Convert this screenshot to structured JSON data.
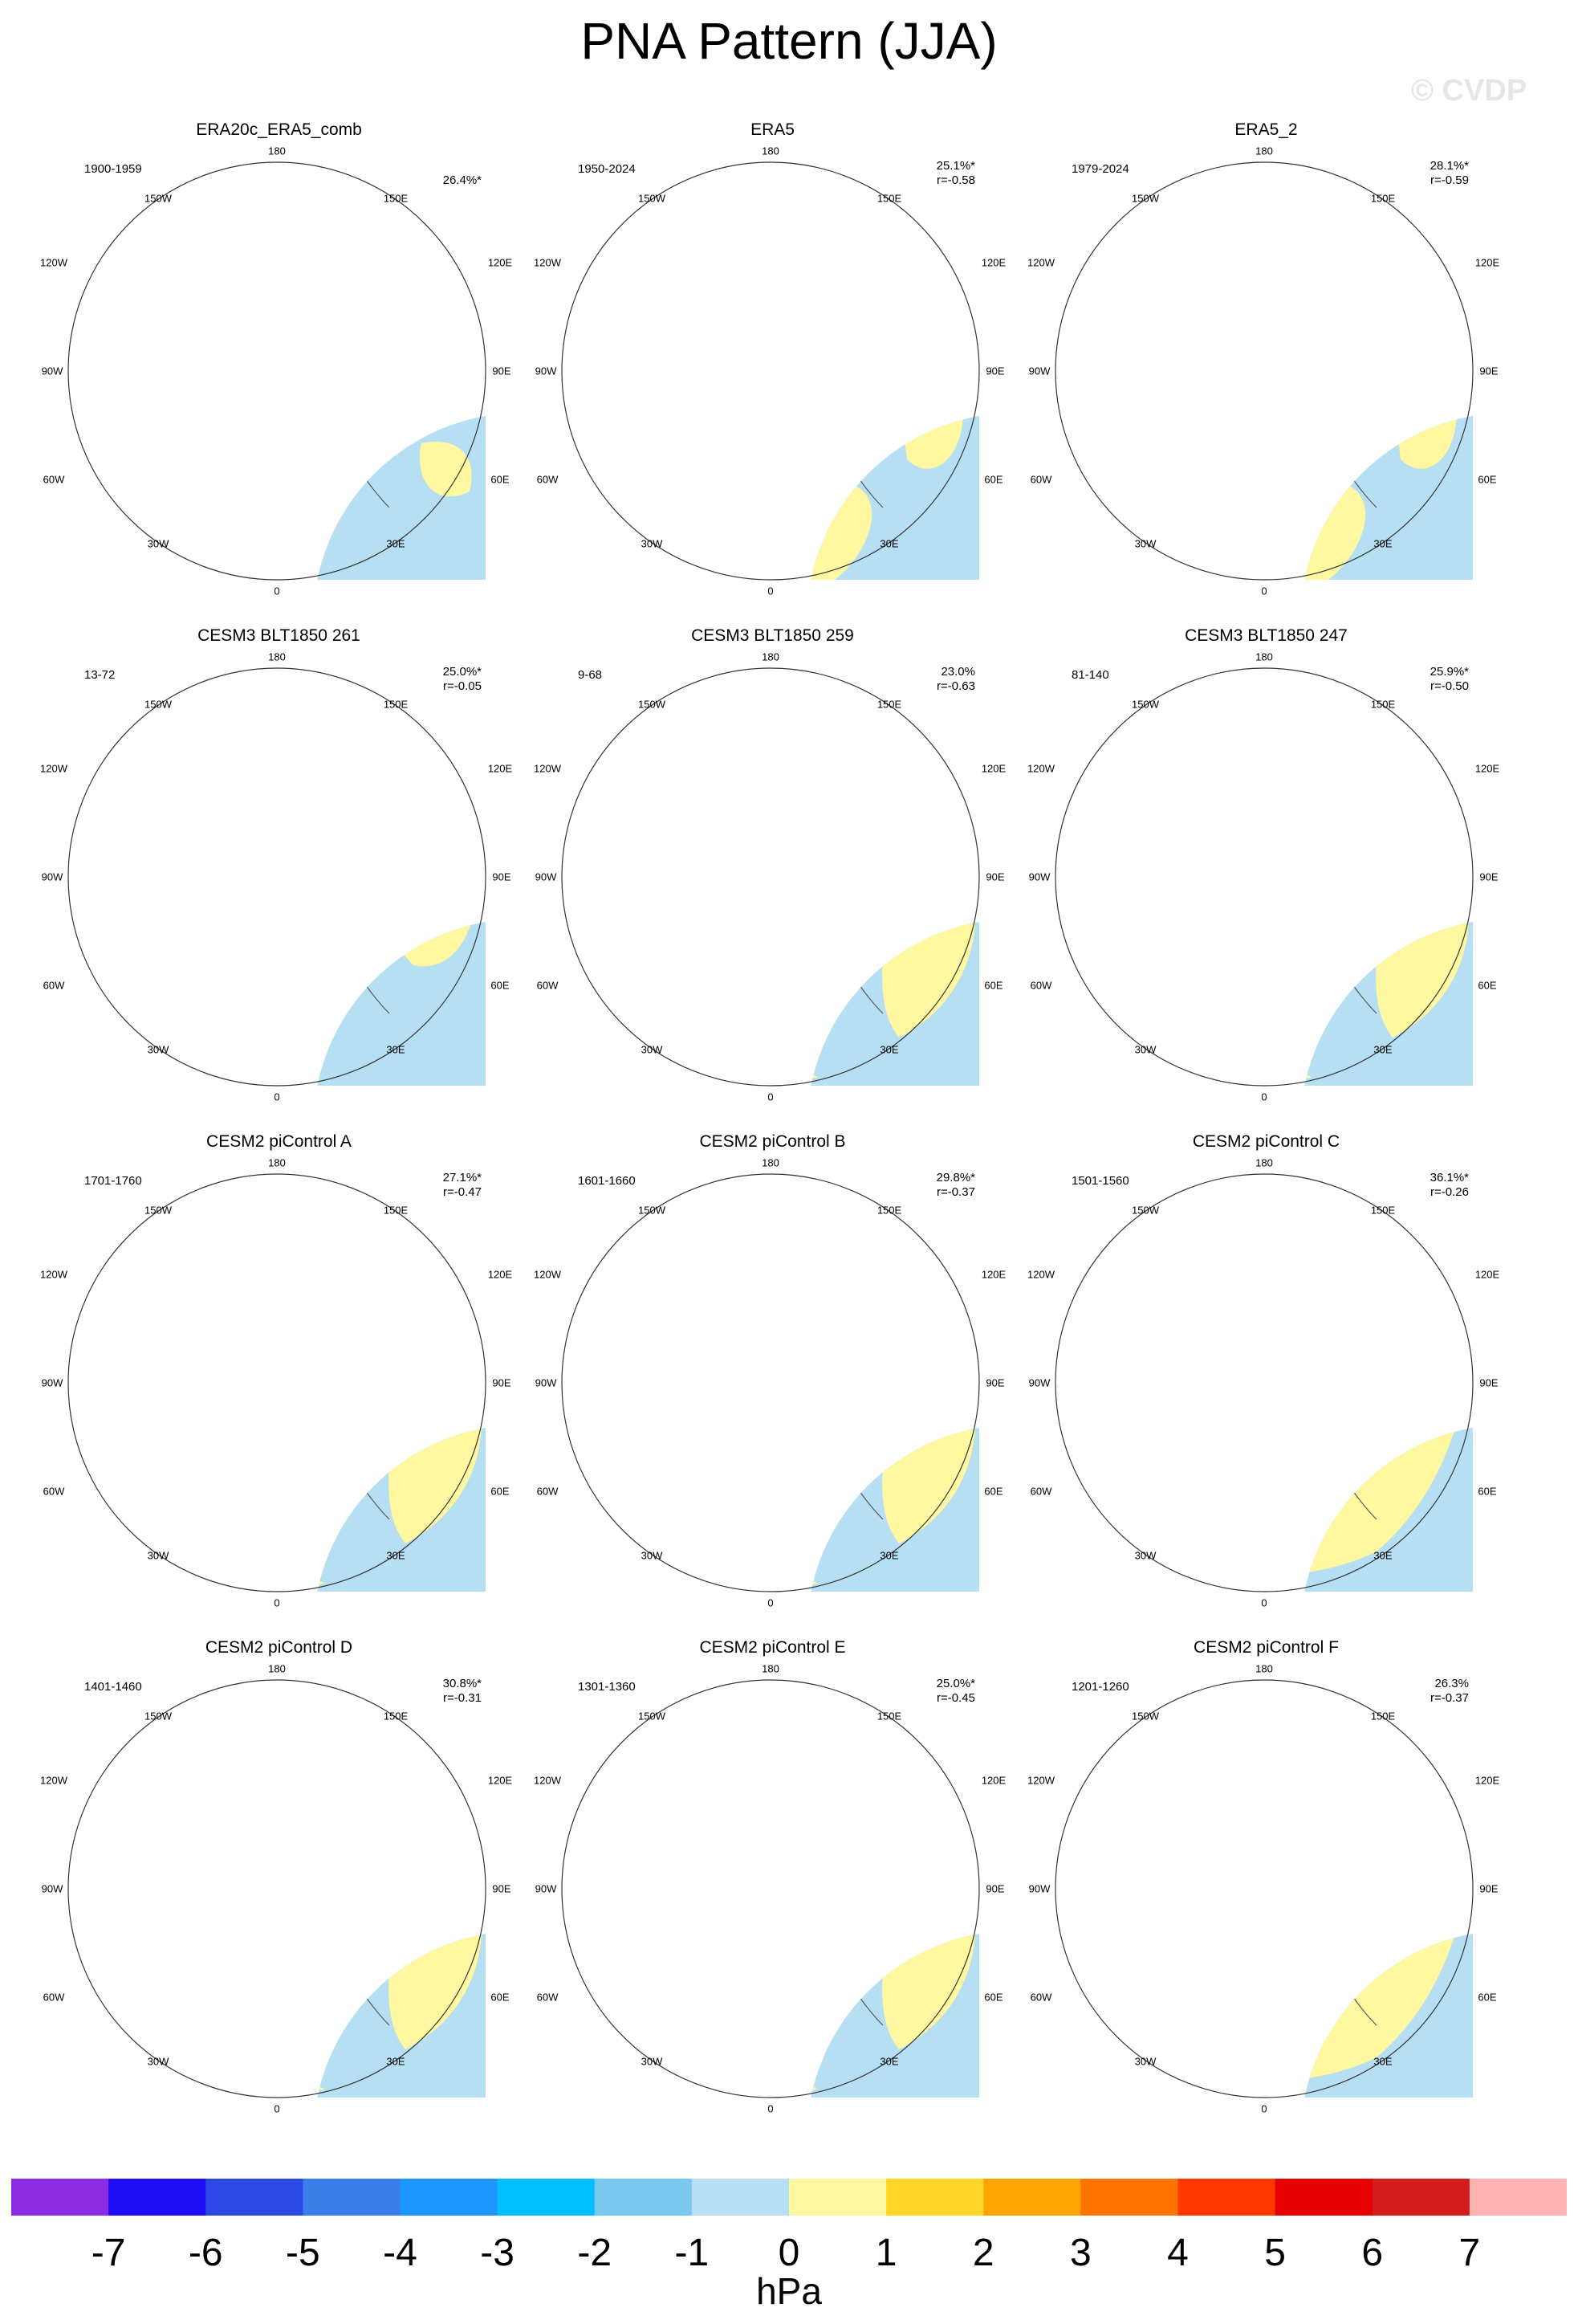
{
  "title": "PNA Pattern (JJA)",
  "watermark": "© CVDP",
  "units": "hPa",
  "colorbar": {
    "ticks": [
      "-7",
      "-6",
      "-5",
      "-4",
      "-3",
      "-2",
      "-1",
      "0",
      "1",
      "2",
      "3",
      "4",
      "5",
      "6",
      "7"
    ],
    "colors": [
      "#8b2be2",
      "#1e0ff7",
      "#2c48e6",
      "#3a7fe8",
      "#1e96ff",
      "#00c0ff",
      "#79c8f0",
      "#b6dff3",
      "#fff8a0",
      "#ffd528",
      "#ffa500",
      "#ff7400",
      "#ff3800",
      "#e60000",
      "#d41c1c",
      "#ffb4b4"
    ]
  },
  "polar_labels": {
    "top": "180",
    "bottom": "0",
    "left_mid": "90W",
    "right_mid": "90E",
    "upper_left": "150W",
    "upper_right": "150E",
    "mid_upper_left": "120W",
    "mid_upper_right": "120E",
    "mid_lower_left": "60W",
    "mid_lower_right": "60E",
    "lower_left": "30W",
    "lower_right": "30E"
  },
  "panels": [
    {
      "title": "ERA20c_ERA5_comb",
      "years": "1900-1959",
      "pct": "26.4%*",
      "r": "",
      "pattern": "a"
    },
    {
      "title": "ERA5",
      "years": "1950-2024",
      "pct": "25.1%*",
      "r": "r=-0.58",
      "pattern": "b"
    },
    {
      "title": "ERA5_2",
      "years": "1979-2024",
      "pct": "28.1%*",
      "r": "r=-0.59",
      "pattern": "b"
    },
    {
      "title": "CESM3 BLT1850 261",
      "years": "13-72",
      "pct": "25.0%*",
      "r": "r=-0.05",
      "pattern": "c"
    },
    {
      "title": "CESM3 BLT1850 259",
      "years": "9-68",
      "pct": "23.0%",
      "r": "r=-0.63",
      "pattern": "d"
    },
    {
      "title": "CESM3 BLT1850 247",
      "years": "81-140",
      "pct": "25.9%*",
      "r": "r=-0.50",
      "pattern": "d"
    },
    {
      "title": "CESM2 piControl A",
      "years": "1701-1760",
      "pct": "27.1%*",
      "r": "r=-0.47",
      "pattern": "d"
    },
    {
      "title": "CESM2 piControl B",
      "years": "1601-1660",
      "pct": "29.8%*",
      "r": "r=-0.37",
      "pattern": "d"
    },
    {
      "title": "CESM2 piControl C",
      "years": "1501-1560",
      "pct": "36.1%*",
      "r": "r=-0.26",
      "pattern": "e"
    },
    {
      "title": "CESM2 piControl D",
      "years": "1401-1460",
      "pct": "30.8%*",
      "r": "r=-0.31",
      "pattern": "d"
    },
    {
      "title": "CESM2 piControl E",
      "years": "1301-1360",
      "pct": "25.0%*",
      "r": "r=-0.45",
      "pattern": "d"
    },
    {
      "title": "CESM2 piControl F",
      "years": "1201-1260",
      "pct": "26.3%",
      "r": "r=-0.37",
      "pattern": "e"
    }
  ]
}
